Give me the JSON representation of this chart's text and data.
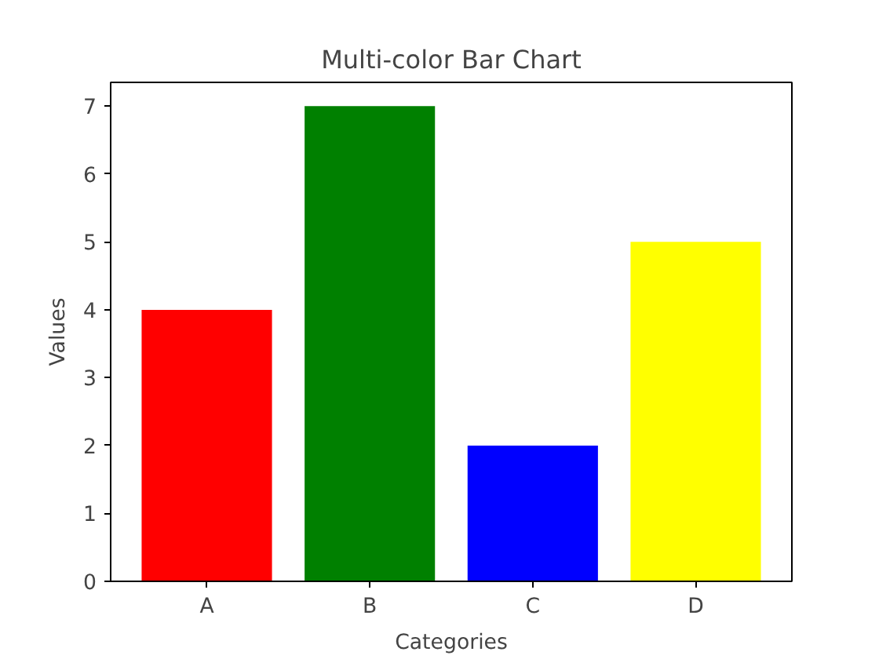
{
  "chart_data": {
    "type": "bar",
    "title": "Multi-color Bar Chart",
    "xlabel": "Categories",
    "ylabel": "Values",
    "categories": [
      "A",
      "B",
      "C",
      "D"
    ],
    "values": [
      4,
      7,
      2,
      5
    ],
    "colors": [
      "#ff0000",
      "#008000",
      "#0000ff",
      "#ffff00"
    ],
    "ylim": [
      0,
      7.35
    ],
    "yticks": [
      0,
      1,
      2,
      3,
      4,
      5,
      6,
      7
    ],
    "grid": false
  }
}
